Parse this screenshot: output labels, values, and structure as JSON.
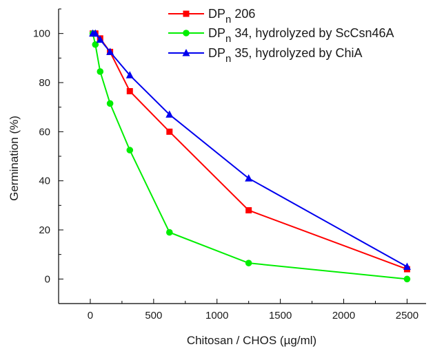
{
  "chart_data": {
    "type": "line",
    "title": "",
    "xlabel": "Chitosan / CHOS (µg/ml)",
    "ylabel": "Germination (%)",
    "xlim": [
      -250,
      2650
    ],
    "ylim": [
      -10,
      110
    ],
    "xticks": [
      0,
      500,
      1000,
      1500,
      2000,
      2500
    ],
    "yticks": [
      0,
      20,
      40,
      60,
      80,
      100
    ],
    "grid": false,
    "legend_position": "top-right",
    "series": [
      {
        "name_main": "DP",
        "name_sub": "n",
        "name_rest": " 206",
        "color": "#ff0000",
        "marker": "square",
        "x": [
          20,
          40,
          78,
          156,
          312,
          625,
          1250,
          2500
        ],
        "y": [
          100,
          100,
          98,
          92.5,
          76.5,
          60,
          28,
          4
        ]
      },
      {
        "name_main": "DP",
        "name_sub": "n",
        "name_rest": " 34, hydrolyzed by ScCsn46A",
        "color": "#00ee00",
        "marker": "circle",
        "x": [
          20,
          40,
          78,
          156,
          312,
          625,
          1250,
          2500
        ],
        "y": [
          100,
          95.5,
          84.5,
          71.5,
          52.5,
          19,
          6.5,
          0
        ]
      },
      {
        "name_main": "DP",
        "name_sub": "n",
        "name_rest": " 35, hydrolyzed by ChiA",
        "color": "#0000ee",
        "marker": "triangle",
        "x": [
          20,
          40,
          78,
          156,
          312,
          625,
          1250,
          2500
        ],
        "y": [
          100,
          100,
          97.5,
          92.5,
          83,
          67,
          41,
          5
        ]
      }
    ]
  }
}
